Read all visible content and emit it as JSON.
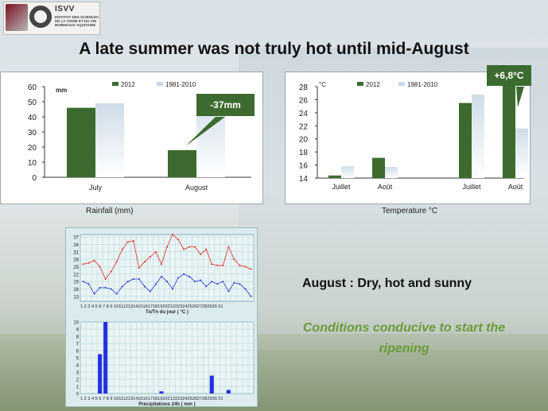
{
  "logo": {
    "name": "ISVV",
    "subtitle": "INSTITUT DES SCIENCES DE LA VIGNE ET DU VIN BORDEAUX AQUITAINE"
  },
  "title": "A late summer was not truly hot until mid-August",
  "rainfall": {
    "caption": "Rainfall (mm)",
    "unit": "mm",
    "callout": "-37mm",
    "chart_data": {
      "type": "bar",
      "categories": [
        "July",
        "August"
      ],
      "series": [
        {
          "name": "2012",
          "values": [
            46,
            18
          ]
        },
        {
          "name": "1981-2010",
          "values": [
            49,
            55
          ]
        }
      ],
      "yticks": [
        "0",
        "10",
        "20",
        "30",
        "40",
        "50",
        "60"
      ],
      "ylim": [
        0,
        60
      ]
    }
  },
  "temperature": {
    "caption": "Temperature °C",
    "unit": "°C",
    "callout": "+6,8°C",
    "chart_data": {
      "type": "bar",
      "categories": [
        "Juillet",
        "Août",
        "Juillet",
        "Août"
      ],
      "series": [
        {
          "name": "2012",
          "values": [
            14.4,
            17.1,
            25.5,
            28.4
          ]
        },
        {
          "name": "1981-2010",
          "values": [
            15.8,
            15.7,
            26.8,
            21.6
          ]
        }
      ],
      "yticks": [
        "14",
        "16",
        "18",
        "20",
        "22",
        "24",
        "26",
        "28"
      ],
      "ylim": [
        14,
        28
      ]
    }
  },
  "weather_temp": {
    "label": "Tx/Tn du jour ( °C )",
    "yticks": [
      "37",
      "34",
      "31",
      "28",
      "25",
      "22",
      "19",
      "16",
      "13"
    ],
    "days": "1 2 3 4 5 6 7 8 9 101112131415161718192021222324252627282930 31",
    "chart_data": {
      "type": "line",
      "ylim": [
        11,
        38
      ],
      "series": [
        {
          "name": "Tx",
          "values": [
            26,
            26.5,
            27.5,
            25,
            20,
            23,
            27,
            32,
            35,
            35.5,
            24.5,
            27,
            29,
            31,
            26,
            33,
            38,
            36,
            32,
            33,
            33,
            30,
            32,
            26,
            25.5,
            25.5,
            33,
            28,
            25.5,
            25,
            24
          ]
        },
        {
          "name": "Tn",
          "values": [
            19,
            18,
            14,
            16.5,
            16.5,
            16,
            14,
            17,
            19,
            20,
            20,
            17,
            15,
            18,
            21,
            19,
            16,
            20.5,
            22,
            21,
            19,
            19.5,
            17,
            19,
            18,
            19,
            15,
            18.5,
            18,
            16,
            13
          ]
        }
      ]
    }
  },
  "weather_rain": {
    "label": "Précipitations 24h ( mm )",
    "yticks": [
      "10",
      "9",
      "8",
      "7",
      "6",
      "5",
      "4",
      "3",
      "2",
      "1",
      "0"
    ],
    "days": "1 2 3 4 5 6 7 8 9 101112131415161718192021222324252627282930 31",
    "chart_data": {
      "type": "bar",
      "ylim": [
        0,
        10
      ],
      "values": [
        0,
        0,
        0,
        5.5,
        10,
        0,
        0,
        0,
        0,
        0,
        0,
        0,
        0,
        0,
        0.3,
        0,
        0,
        0,
        0,
        0,
        0,
        0,
        0,
        2.5,
        0,
        0,
        0.5,
        0,
        0,
        0,
        0
      ]
    }
  },
  "summary": "August : Dry, hot and sunny",
  "conclusion_line1": "Conditions conducive to start the",
  "conclusion_line2": "ripening",
  "colors": {
    "dark_green": "#3d6b2f",
    "light_bar": "#dfe8f0",
    "red_line": "#e0302a",
    "blue_line": "#2a39d6",
    "rain_bar": "#2230e0",
    "green_text": "#6b9a38"
  }
}
